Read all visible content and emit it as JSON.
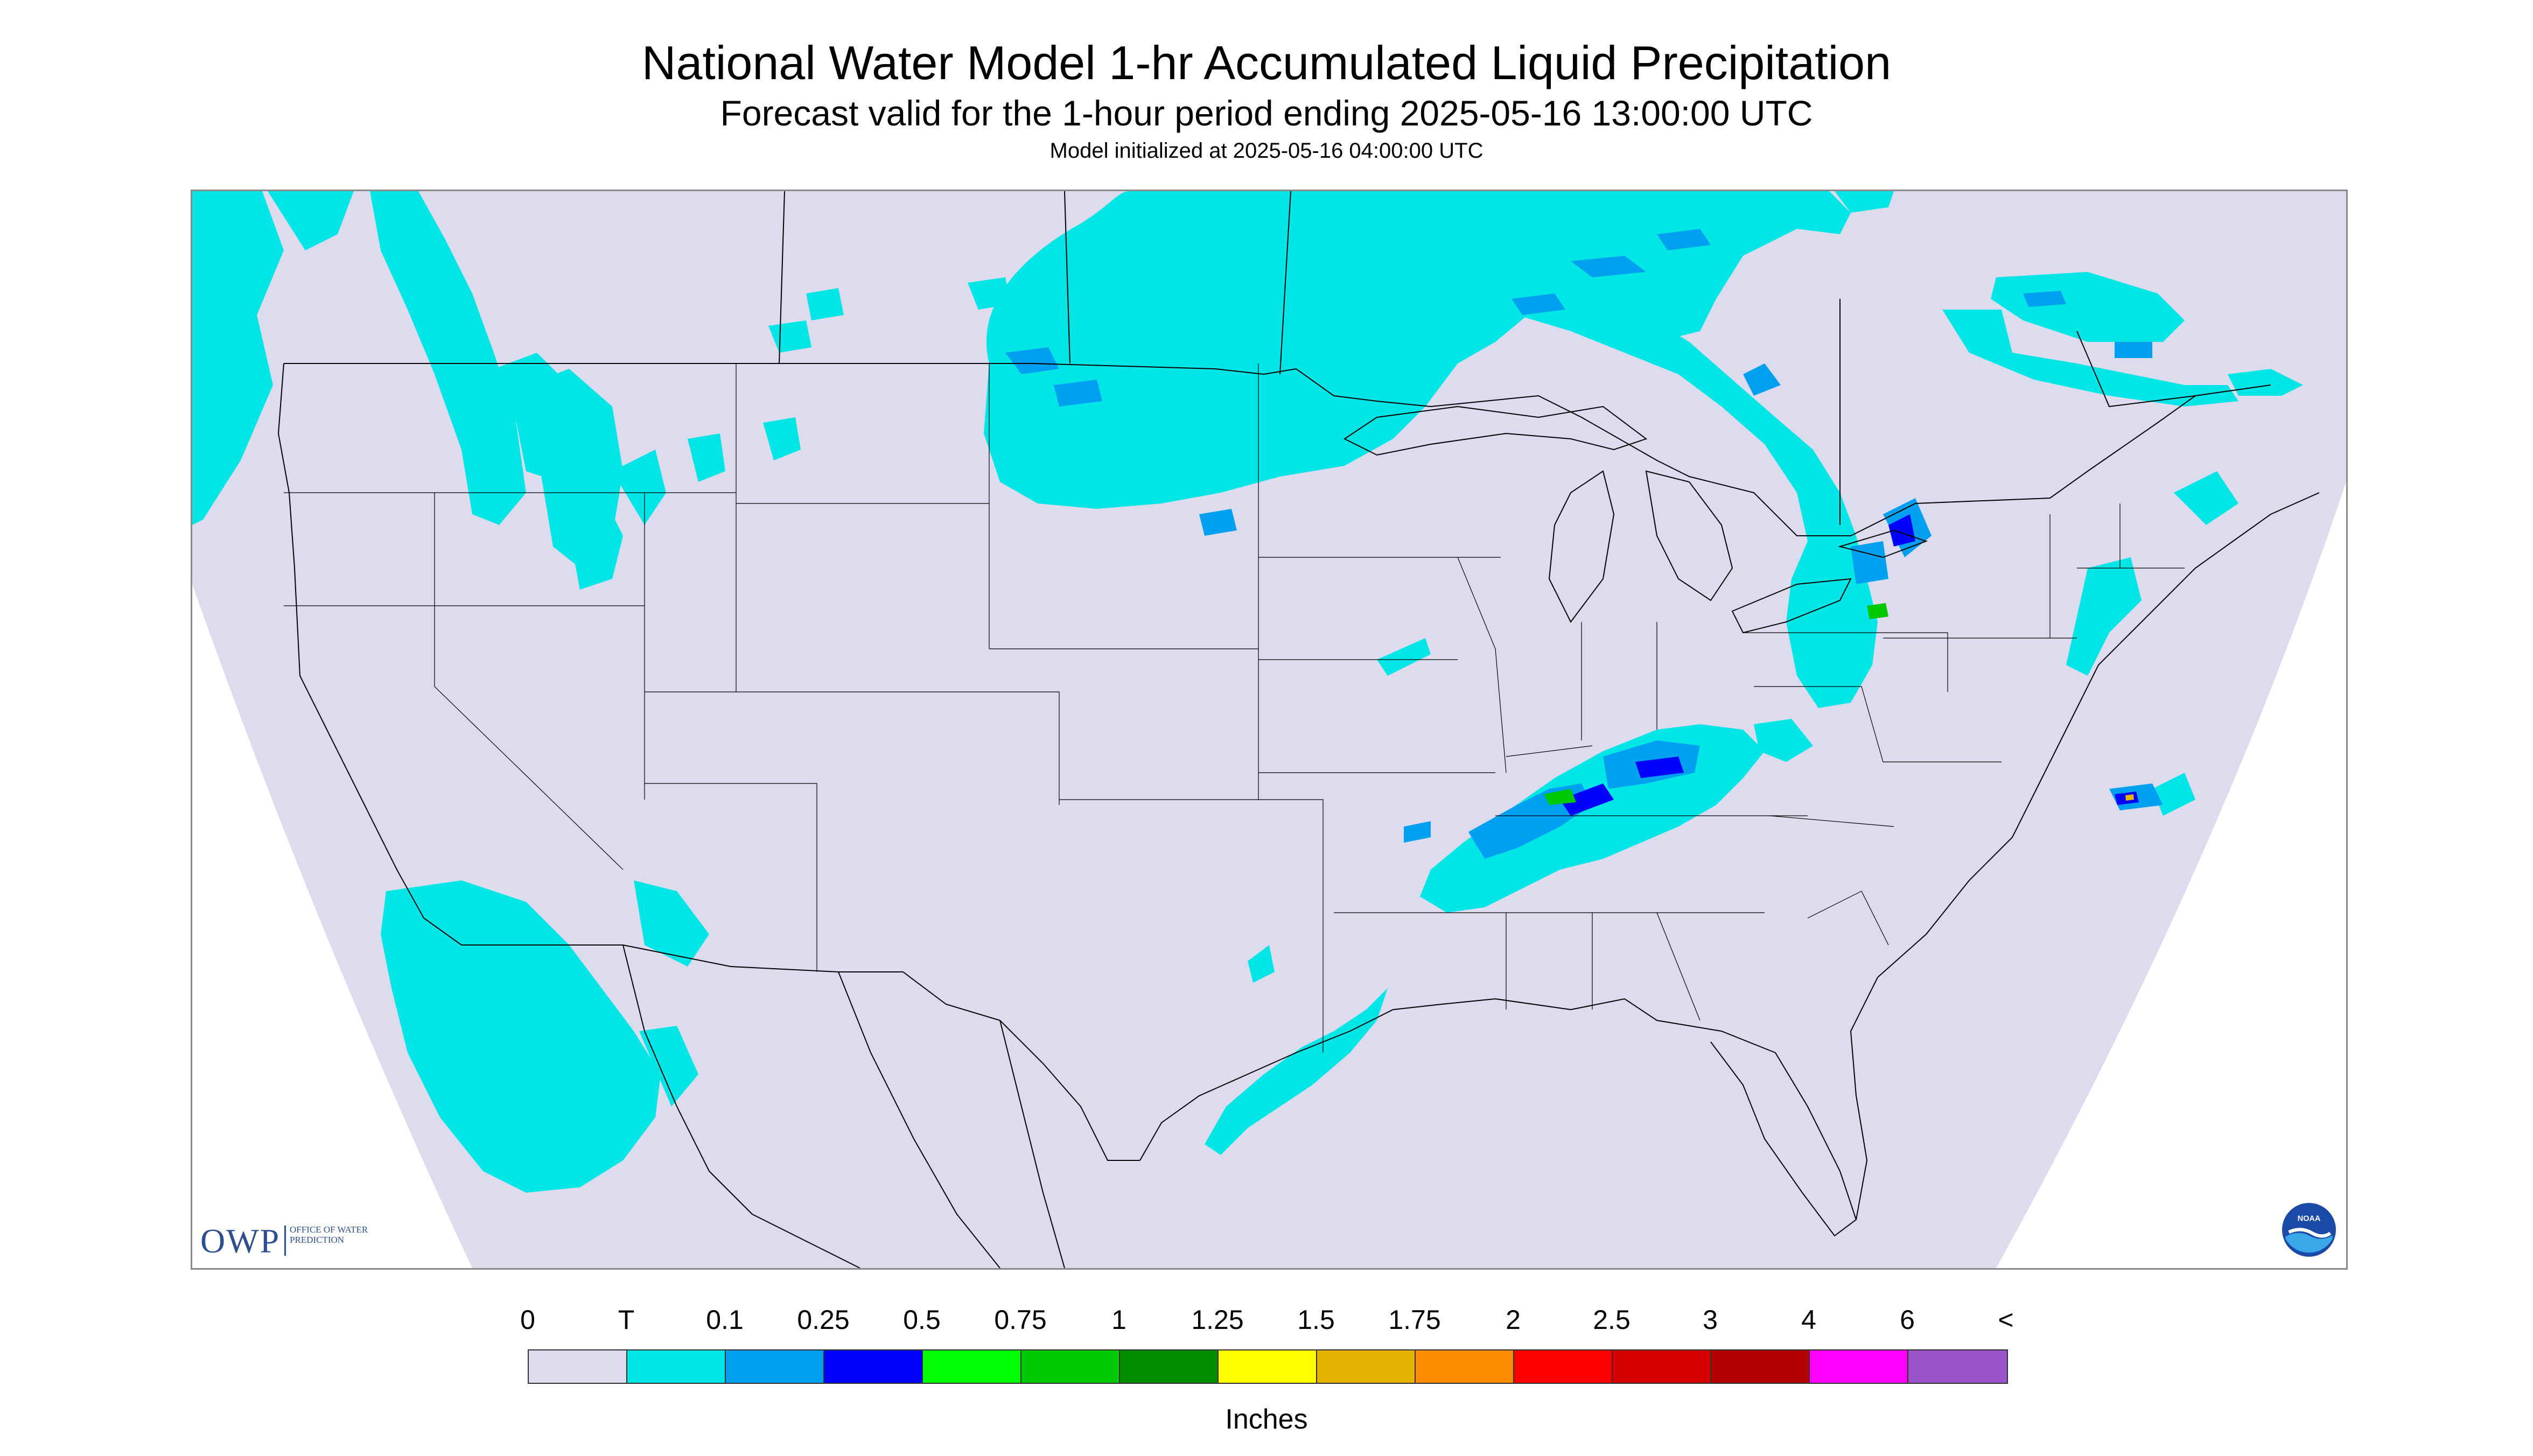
{
  "header": {
    "title": "National Water Model 1-hr Accumulated Liquid Precipitation",
    "subtitle": "Forecast valid for the 1-hour period ending 2025-05-16 13:00:00 UTC",
    "init": "Model initialized at 2025-05-16 04:00:00 UTC"
  },
  "logos": {
    "owp_mark": "OWP",
    "owp_name": "OFFICE OF WATER PREDICTION",
    "noaa": "NOAA"
  },
  "legend": {
    "ticks": [
      "0",
      "T",
      "0.1",
      "0.25",
      "0.5",
      "0.75",
      "1",
      "1.25",
      "1.5",
      "1.75",
      "2",
      "2.5",
      "3",
      "4",
      "6",
      "<"
    ],
    "colors": [
      "#dcdcee",
      "#00e5e5",
      "#00a0f0",
      "#0000ff",
      "#00ff00",
      "#00c800",
      "#008c00",
      "#ffff00",
      "#e6b400",
      "#ff8c00",
      "#ff0000",
      "#d70000",
      "#b40000",
      "#ff00ff",
      "#9955c9"
    ],
    "units": "Inches"
  },
  "map": {
    "domain_fill": "#dcdcee",
    "precip_colors": {
      "trace": "#00e5e5",
      "light": "#00a0f0",
      "moderate": "#0000ff",
      "heavy": "#00c800",
      "heavier": "#e6b400"
    }
  }
}
